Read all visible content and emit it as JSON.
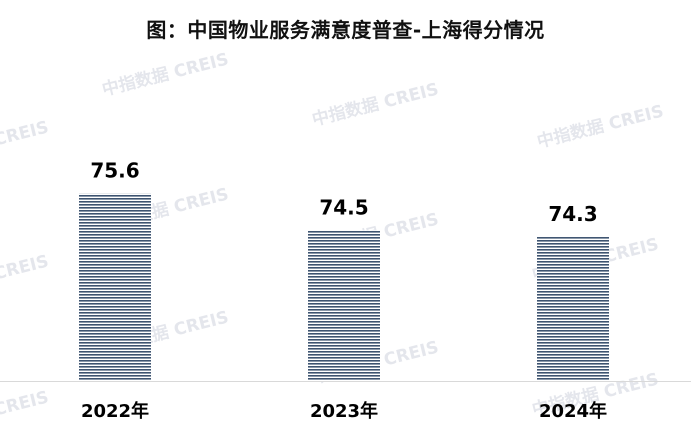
{
  "title": "图：中国物业服务满意度普查-上海得分情况",
  "watermark": "中指数据 CREIS",
  "colors": {
    "bar_stripe": "#3d5370",
    "bar_gap": "#ffffff",
    "axis": "#d9d9d9"
  },
  "chart_data": {
    "type": "bar",
    "title": "图：中国物业服务满意度普查-上海得分情况",
    "categories": [
      "2022年",
      "2023年",
      "2024年"
    ],
    "values": [
      75.6,
      74.5,
      74.3
    ],
    "value_labels": [
      "75.6",
      "74.5",
      "74.3"
    ],
    "xlabel": "",
    "ylabel": "",
    "ylim": [
      70,
      76.6
    ],
    "grid": false,
    "legend": "none"
  }
}
